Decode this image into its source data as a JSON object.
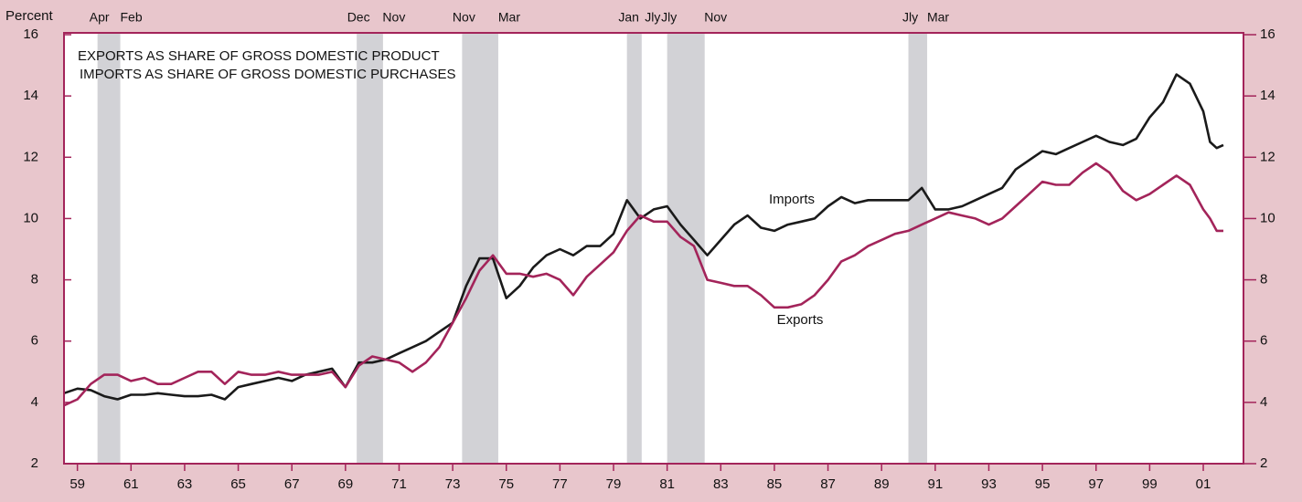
{
  "chart_data": {
    "type": "line",
    "title": "EXPORTS AS SHARE OF GROSS DOMESTIC PRODUCT",
    "subtitle": "IMPORTS AS SHARE OF GROSS DOMESTIC PURCHASES",
    "ylabel": "Percent",
    "xlim": [
      1959,
      2003
    ],
    "ylim": [
      2,
      16
    ],
    "yticks": [
      2,
      4,
      6,
      8,
      10,
      12,
      14,
      16
    ],
    "xticks": [
      {
        "value": 1959.5,
        "label": "59"
      },
      {
        "value": 1961.5,
        "label": "61"
      },
      {
        "value": 1963.5,
        "label": "63"
      },
      {
        "value": 1965.5,
        "label": "65"
      },
      {
        "value": 1967.5,
        "label": "67"
      },
      {
        "value": 1969.5,
        "label": "69"
      },
      {
        "value": 1971.5,
        "label": "71"
      },
      {
        "value": 1973.5,
        "label": "73"
      },
      {
        "value": 1975.5,
        "label": "75"
      },
      {
        "value": 1977.5,
        "label": "77"
      },
      {
        "value": 1979.5,
        "label": "79"
      },
      {
        "value": 1981.5,
        "label": "81"
      },
      {
        "value": 1983.5,
        "label": "83"
      },
      {
        "value": 1985.5,
        "label": "85"
      },
      {
        "value": 1987.5,
        "label": "87"
      },
      {
        "value": 1989.5,
        "label": "89"
      },
      {
        "value": 1991.5,
        "label": "91"
      },
      {
        "value": 1993.5,
        "label": "93"
      },
      {
        "value": 1995.5,
        "label": "95"
      },
      {
        "value": 1997.5,
        "label": "97"
      },
      {
        "value": 1999.5,
        "label": "99"
      },
      {
        "value": 2001.5,
        "label": "01"
      }
    ],
    "recessions": [
      {
        "start": 1960.25,
        "end": 1961.1,
        "start_label": "Apr",
        "end_label": "Feb"
      },
      {
        "start": 1969.92,
        "end": 1970.9,
        "start_label": "Dec",
        "end_label": "Nov"
      },
      {
        "start": 1973.85,
        "end": 1975.2,
        "start_label": "Nov",
        "end_label": "Mar"
      },
      {
        "start": 1980.0,
        "end": 1980.55,
        "start_label": "Jan",
        "end_label": "Jly"
      },
      {
        "start": 1981.5,
        "end": 1982.9,
        "start_label": "Jly",
        "end_label": "Nov"
      },
      {
        "start": 1990.5,
        "end": 1991.2,
        "start_label": "Jly",
        "end_label": "Mar"
      }
    ],
    "x": [
      1959,
      1959.5,
      1960,
      1960.5,
      1961,
      1961.5,
      1962,
      1962.5,
      1963,
      1963.5,
      1964,
      1964.5,
      1965,
      1965.5,
      1966,
      1966.5,
      1967,
      1967.5,
      1968,
      1968.5,
      1969,
      1969.5,
      1970,
      1970.5,
      1971,
      1971.5,
      1972,
      1972.5,
      1973,
      1973.5,
      1974,
      1974.5,
      1975,
      1975.5,
      1976,
      1976.5,
      1977,
      1977.5,
      1978,
      1978.5,
      1979,
      1979.5,
      1980,
      1980.5,
      1981,
      1981.5,
      1982,
      1982.5,
      1983,
      1983.5,
      1984,
      1984.5,
      1985,
      1985.5,
      1986,
      1986.5,
      1987,
      1987.5,
      1988,
      1988.5,
      1989,
      1989.5,
      1990,
      1990.5,
      1991,
      1991.5,
      1992,
      1992.5,
      1993,
      1993.5,
      1994,
      1994.5,
      1995,
      1995.5,
      1996,
      1996.5,
      1997,
      1997.5,
      1998,
      1998.5,
      1999,
      1999.5,
      2000,
      2000.5,
      2001,
      2001.5,
      2001.75,
      2002,
      2002.25
    ],
    "series": [
      {
        "name": "Imports",
        "color": "#1a1a1a",
        "values": [
          4.3,
          4.45,
          4.4,
          4.2,
          4.1,
          4.25,
          4.25,
          4.3,
          4.25,
          4.2,
          4.2,
          4.25,
          4.1,
          4.5,
          4.6,
          4.7,
          4.8,
          4.7,
          4.9,
          5.0,
          5.1,
          4.5,
          5.3,
          5.3,
          5.4,
          5.6,
          5.8,
          6.0,
          6.3,
          6.6,
          7.8,
          8.7,
          8.7,
          7.4,
          7.8,
          8.4,
          8.8,
          9.0,
          8.8,
          9.1,
          9.1,
          9.5,
          10.6,
          10.0,
          10.3,
          10.4,
          9.8,
          9.3,
          8.8,
          9.3,
          9.8,
          10.1,
          9.7,
          9.6,
          9.8,
          9.9,
          10.0,
          10.4,
          10.7,
          10.5,
          10.6,
          10.6,
          10.6,
          10.6,
          11.0,
          10.3,
          10.3,
          10.4,
          10.6,
          10.8,
          11.0,
          11.6,
          11.9,
          12.2,
          12.1,
          12.3,
          12.5,
          12.7,
          12.5,
          12.4,
          12.6,
          13.3,
          13.8,
          14.7,
          14.4,
          13.5,
          12.5,
          12.3,
          12.4
        ]
      },
      {
        "name": "Exports",
        "color": "#a3245a",
        "values": [
          3.9,
          4.1,
          4.6,
          4.9,
          4.9,
          4.7,
          4.8,
          4.6,
          4.6,
          4.8,
          5.0,
          5.0,
          4.6,
          5.0,
          4.9,
          4.9,
          5.0,
          4.9,
          4.9,
          4.9,
          5.0,
          4.5,
          5.2,
          5.5,
          5.4,
          5.3,
          5.0,
          5.3,
          5.8,
          6.6,
          7.4,
          8.3,
          8.8,
          8.2,
          8.2,
          8.1,
          8.2,
          8.0,
          7.5,
          8.1,
          8.5,
          8.9,
          9.6,
          10.1,
          9.9,
          9.9,
          9.4,
          9.1,
          8.0,
          7.9,
          7.8,
          7.8,
          7.5,
          7.1,
          7.1,
          7.2,
          7.5,
          8.0,
          8.6,
          8.8,
          9.1,
          9.3,
          9.5,
          9.6,
          9.8,
          10.0,
          10.2,
          10.1,
          10.0,
          9.8,
          10.0,
          10.4,
          10.8,
          11.2,
          11.1,
          11.1,
          11.5,
          11.8,
          11.5,
          10.9,
          10.6,
          10.8,
          11.1,
          11.4,
          11.1,
          10.3,
          10.0,
          9.6,
          9.6
        ]
      }
    ]
  }
}
